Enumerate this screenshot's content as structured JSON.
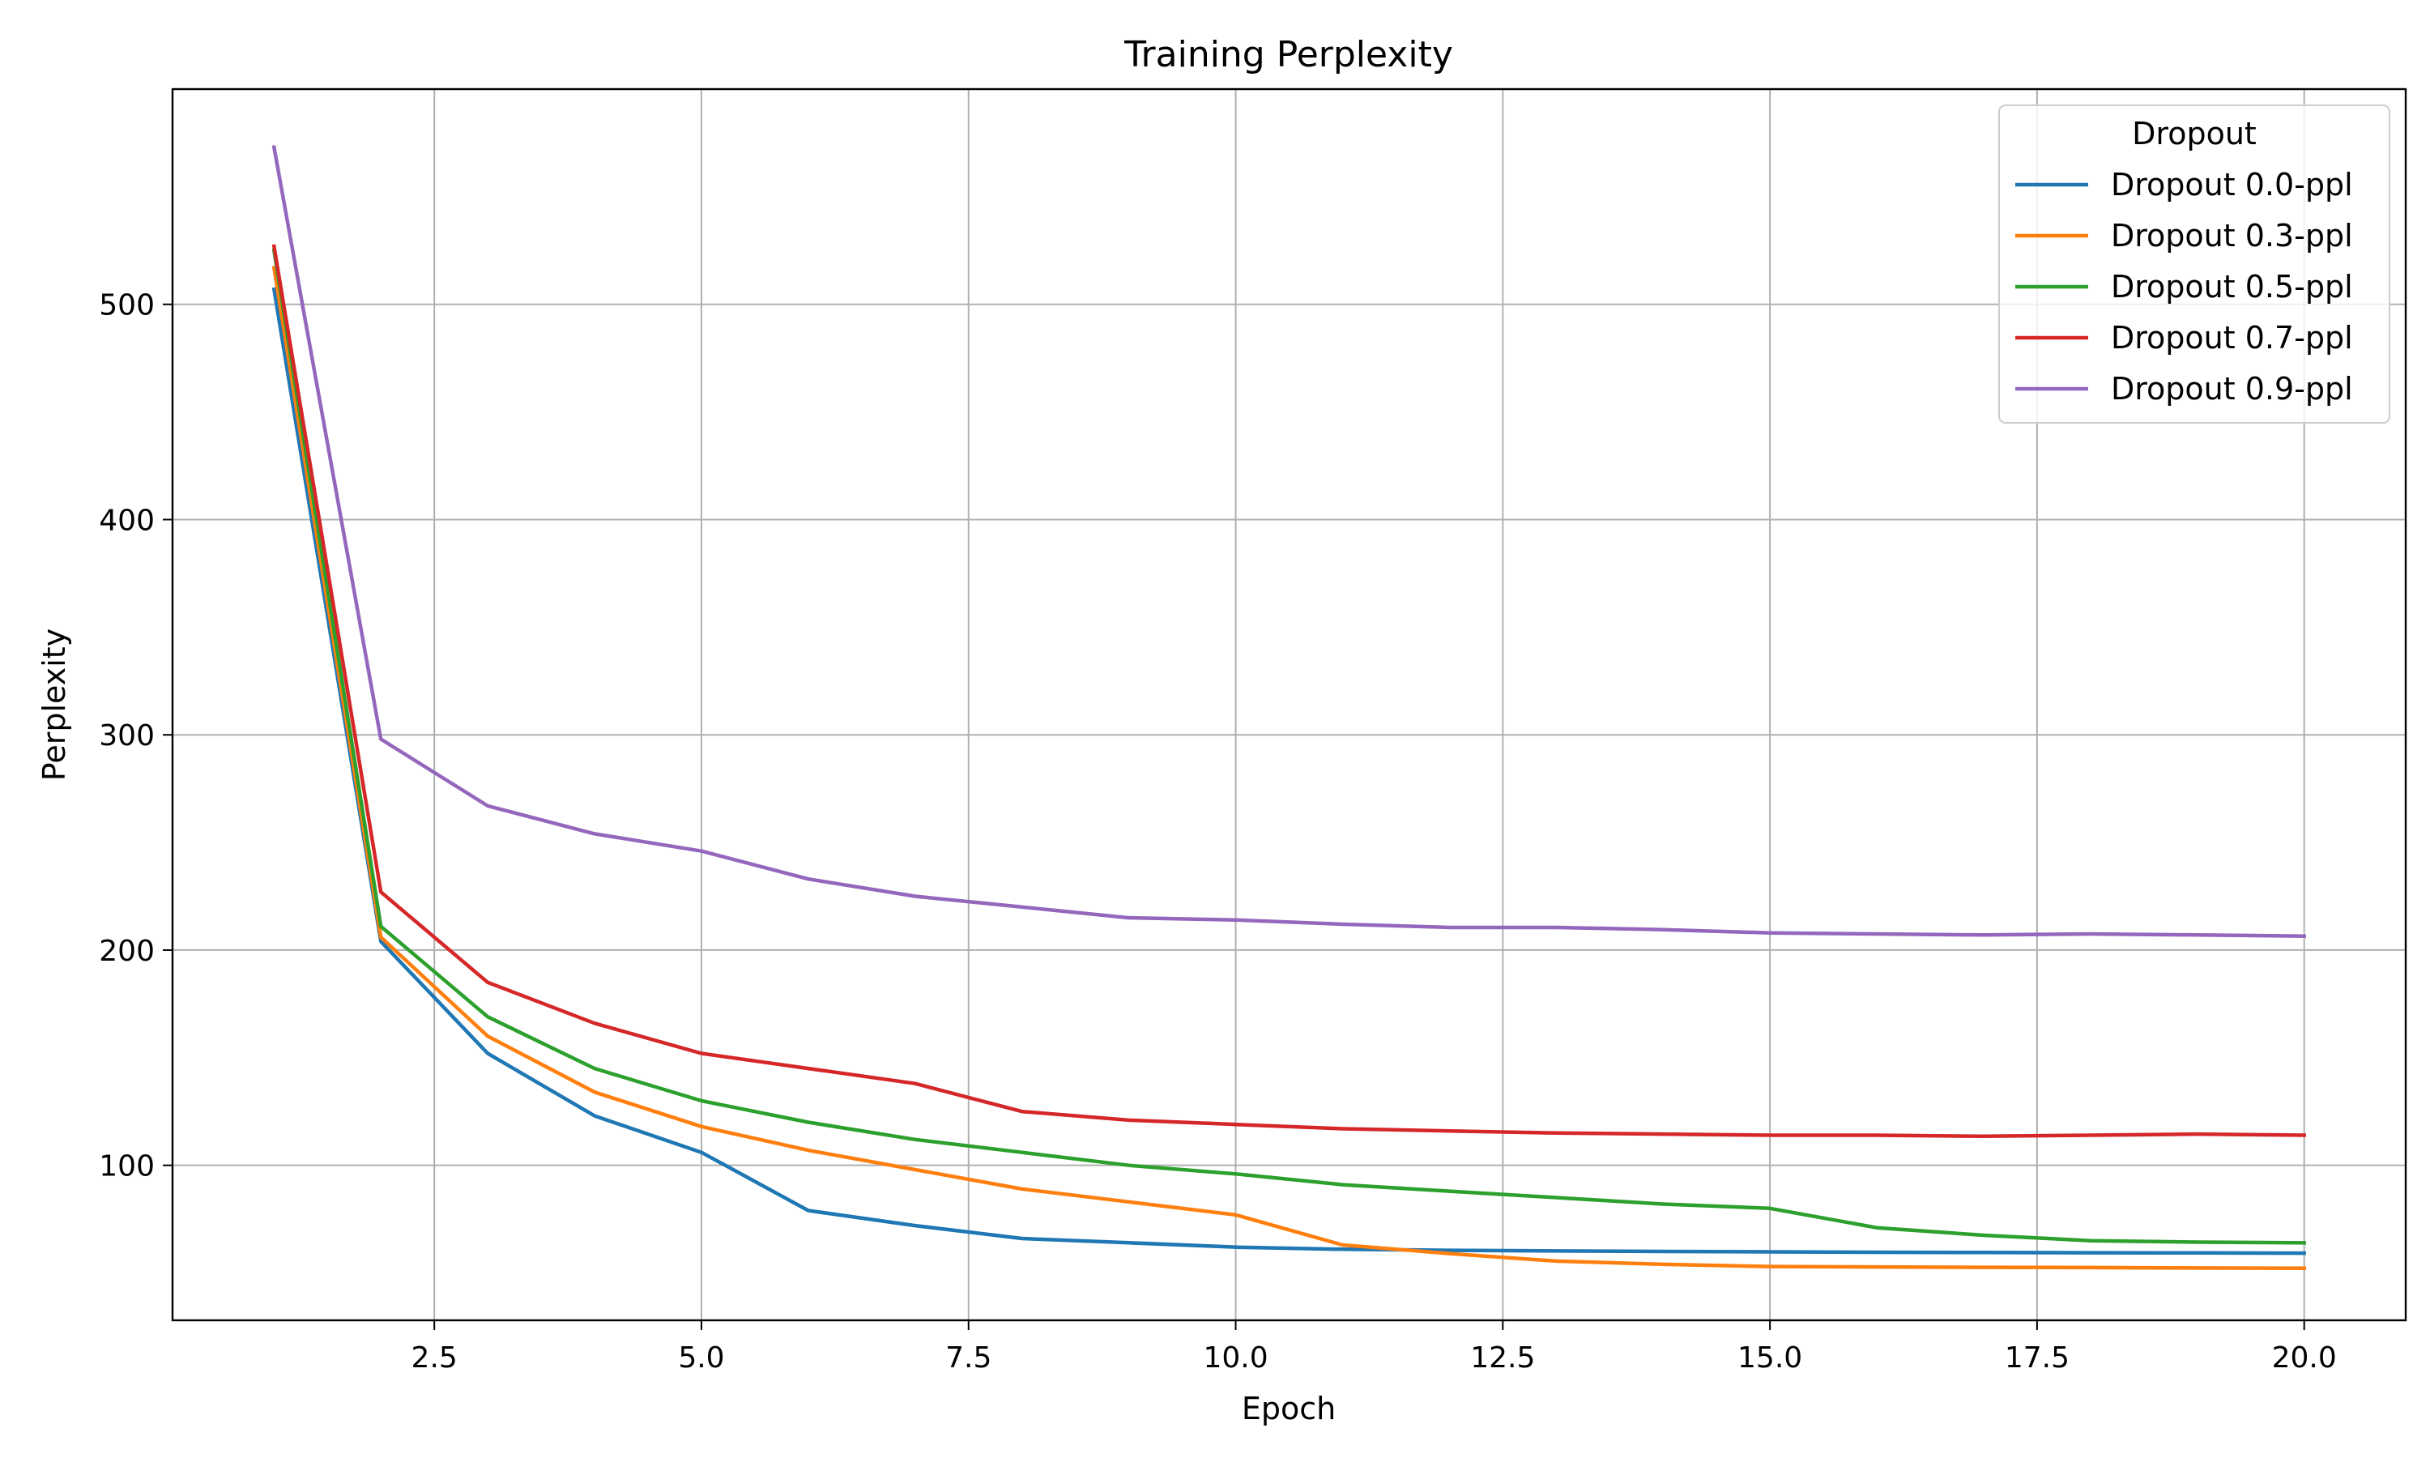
{
  "chart_data": {
    "type": "line",
    "title": "Training Perplexity",
    "xlabel": "Epoch",
    "ylabel": "Perplexity",
    "xlim": [
      0.05,
      20.95
    ],
    "ylim": [
      28,
      600
    ],
    "xticks": [
      2.5,
      5.0,
      7.5,
      10.0,
      12.5,
      15.0,
      17.5,
      20.0
    ],
    "xtick_labels": [
      "2.5",
      "5.0",
      "7.5",
      "10.0",
      "12.5",
      "15.0",
      "17.5",
      "20.0"
    ],
    "yticks": [
      100,
      200,
      300,
      400,
      500
    ],
    "ytick_labels": [
      "100",
      "200",
      "300",
      "400",
      "500"
    ],
    "grid": true,
    "legend": {
      "title": "Dropout",
      "placement": "top-right"
    },
    "x": [
      1,
      2,
      3,
      4,
      5,
      6,
      7,
      8,
      9,
      10,
      11,
      12,
      13,
      14,
      15,
      16,
      17,
      18,
      19,
      20
    ],
    "series": [
      {
        "name": "Dropout 0.0-ppl",
        "color": "#1f77b4",
        "values": [
          507,
          204,
          152,
          123,
          106,
          79,
          72,
          66,
          64,
          62,
          61,
          60.5,
          60.2,
          60,
          59.8,
          59.6,
          59.5,
          59.4,
          59.3,
          59.2
        ]
      },
      {
        "name": "Dropout 0.3-ppl",
        "color": "#ff7f0e",
        "values": [
          517,
          206,
          160,
          134,
          118,
          107,
          98,
          89,
          83,
          77,
          63,
          59,
          55.5,
          54,
          53,
          52.8,
          52.6,
          52.5,
          52.3,
          52.2
        ]
      },
      {
        "name": "Dropout 0.5-ppl",
        "color": "#2ca02c",
        "values": [
          525,
          211,
          169,
          145,
          130,
          120,
          112,
          106,
          100,
          96,
          91,
          88,
          85,
          82,
          80,
          71,
          67.5,
          65,
          64.3,
          64
        ]
      },
      {
        "name": "Dropout 0.7-ppl",
        "color": "#d62728",
        "values": [
          527,
          227,
          185,
          166,
          152,
          145,
          138,
          125,
          121,
          119,
          117,
          116,
          115,
          114.5,
          114,
          114,
          113.5,
          114,
          114.5,
          114
        ]
      },
      {
        "name": "Dropout 0.9-ppl",
        "color": "#9467bd",
        "values": [
          573,
          298,
          267,
          254,
          246,
          233,
          225,
          220,
          215,
          214,
          212,
          210.5,
          210.5,
          209.5,
          208,
          207.5,
          207,
          207.5,
          207,
          206.5
        ]
      }
    ]
  }
}
